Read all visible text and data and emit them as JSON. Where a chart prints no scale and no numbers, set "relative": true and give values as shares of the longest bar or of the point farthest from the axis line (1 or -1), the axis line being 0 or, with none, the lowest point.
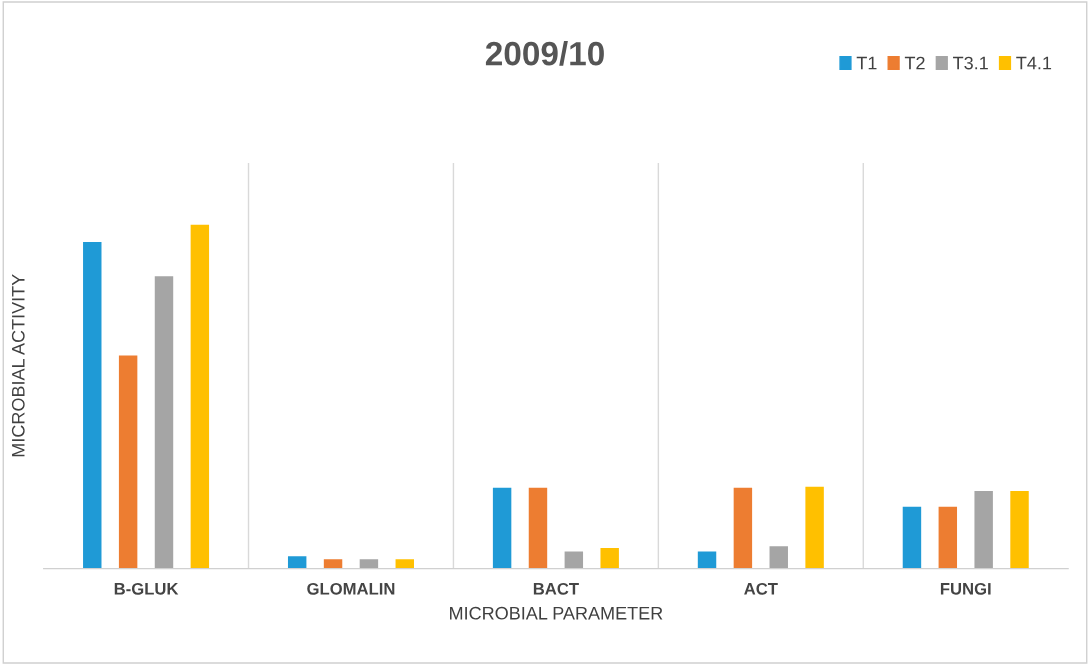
{
  "chart_data": {
    "type": "bar",
    "title": "2009/10",
    "xlabel": "MICROBIAL PARAMETER",
    "ylabel": "MICROBIAL ACTIVITY",
    "relative": true,
    "grid": "x",
    "legend": "top right",
    "categories": [
      "B-GLUK",
      "GLOMALIN",
      "BACT",
      "ACT",
      "FUNGI"
    ],
    "series": [
      {
        "name": "T1",
        "color": "#1f9ad6",
        "values": [
          0.95,
          0.036,
          0.235,
          0.05,
          0.18
        ]
      },
      {
        "name": "T2",
        "color": "#ed7d31",
        "values": [
          0.62,
          0.027,
          0.235,
          0.235,
          0.18
        ]
      },
      {
        "name": "T3.1",
        "color": "#a5a5a5",
        "values": [
          0.85,
          0.027,
          0.05,
          0.065,
          0.226
        ]
      },
      {
        "name": "T4.1",
        "color": "#ffc000",
        "values": [
          1,
          0.027,
          0.06,
          0.238,
          0.226
        ]
      }
    ]
  }
}
